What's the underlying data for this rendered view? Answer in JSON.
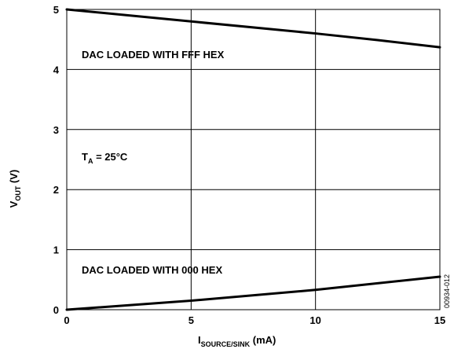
{
  "chart_data": {
    "type": "line",
    "xlabel": {
      "main": "I",
      "sub": "SOURCE/SINK",
      "unit": " (mA)"
    },
    "ylabel": {
      "main": "V",
      "sub": "OUT",
      "unit": " (V)"
    },
    "xlim": [
      0,
      15
    ],
    "ylim": [
      0,
      5
    ],
    "x_ticks": [
      "0",
      "5",
      "10",
      "15"
    ],
    "y_ticks": [
      "0",
      "1",
      "2",
      "3",
      "4",
      "5"
    ],
    "grid": true,
    "series": [
      {
        "x": [
          0,
          5,
          10,
          12.5,
          15
        ],
        "y": [
          5.0,
          4.8,
          4.6,
          4.49,
          4.37
        ]
      },
      {
        "x": [
          0,
          5,
          10,
          15
        ],
        "y": [
          0.0,
          0.15,
          0.33,
          0.55
        ]
      }
    ],
    "annotations": {
      "fff": "DAC LOADED WITH FFF HEX",
      "zero": "DAC LOADED WITH 000 HEX",
      "ta_main": "T",
      "ta_sub": "A",
      "ta_rest": " = 25°C"
    },
    "figure_id": "00934-012"
  }
}
